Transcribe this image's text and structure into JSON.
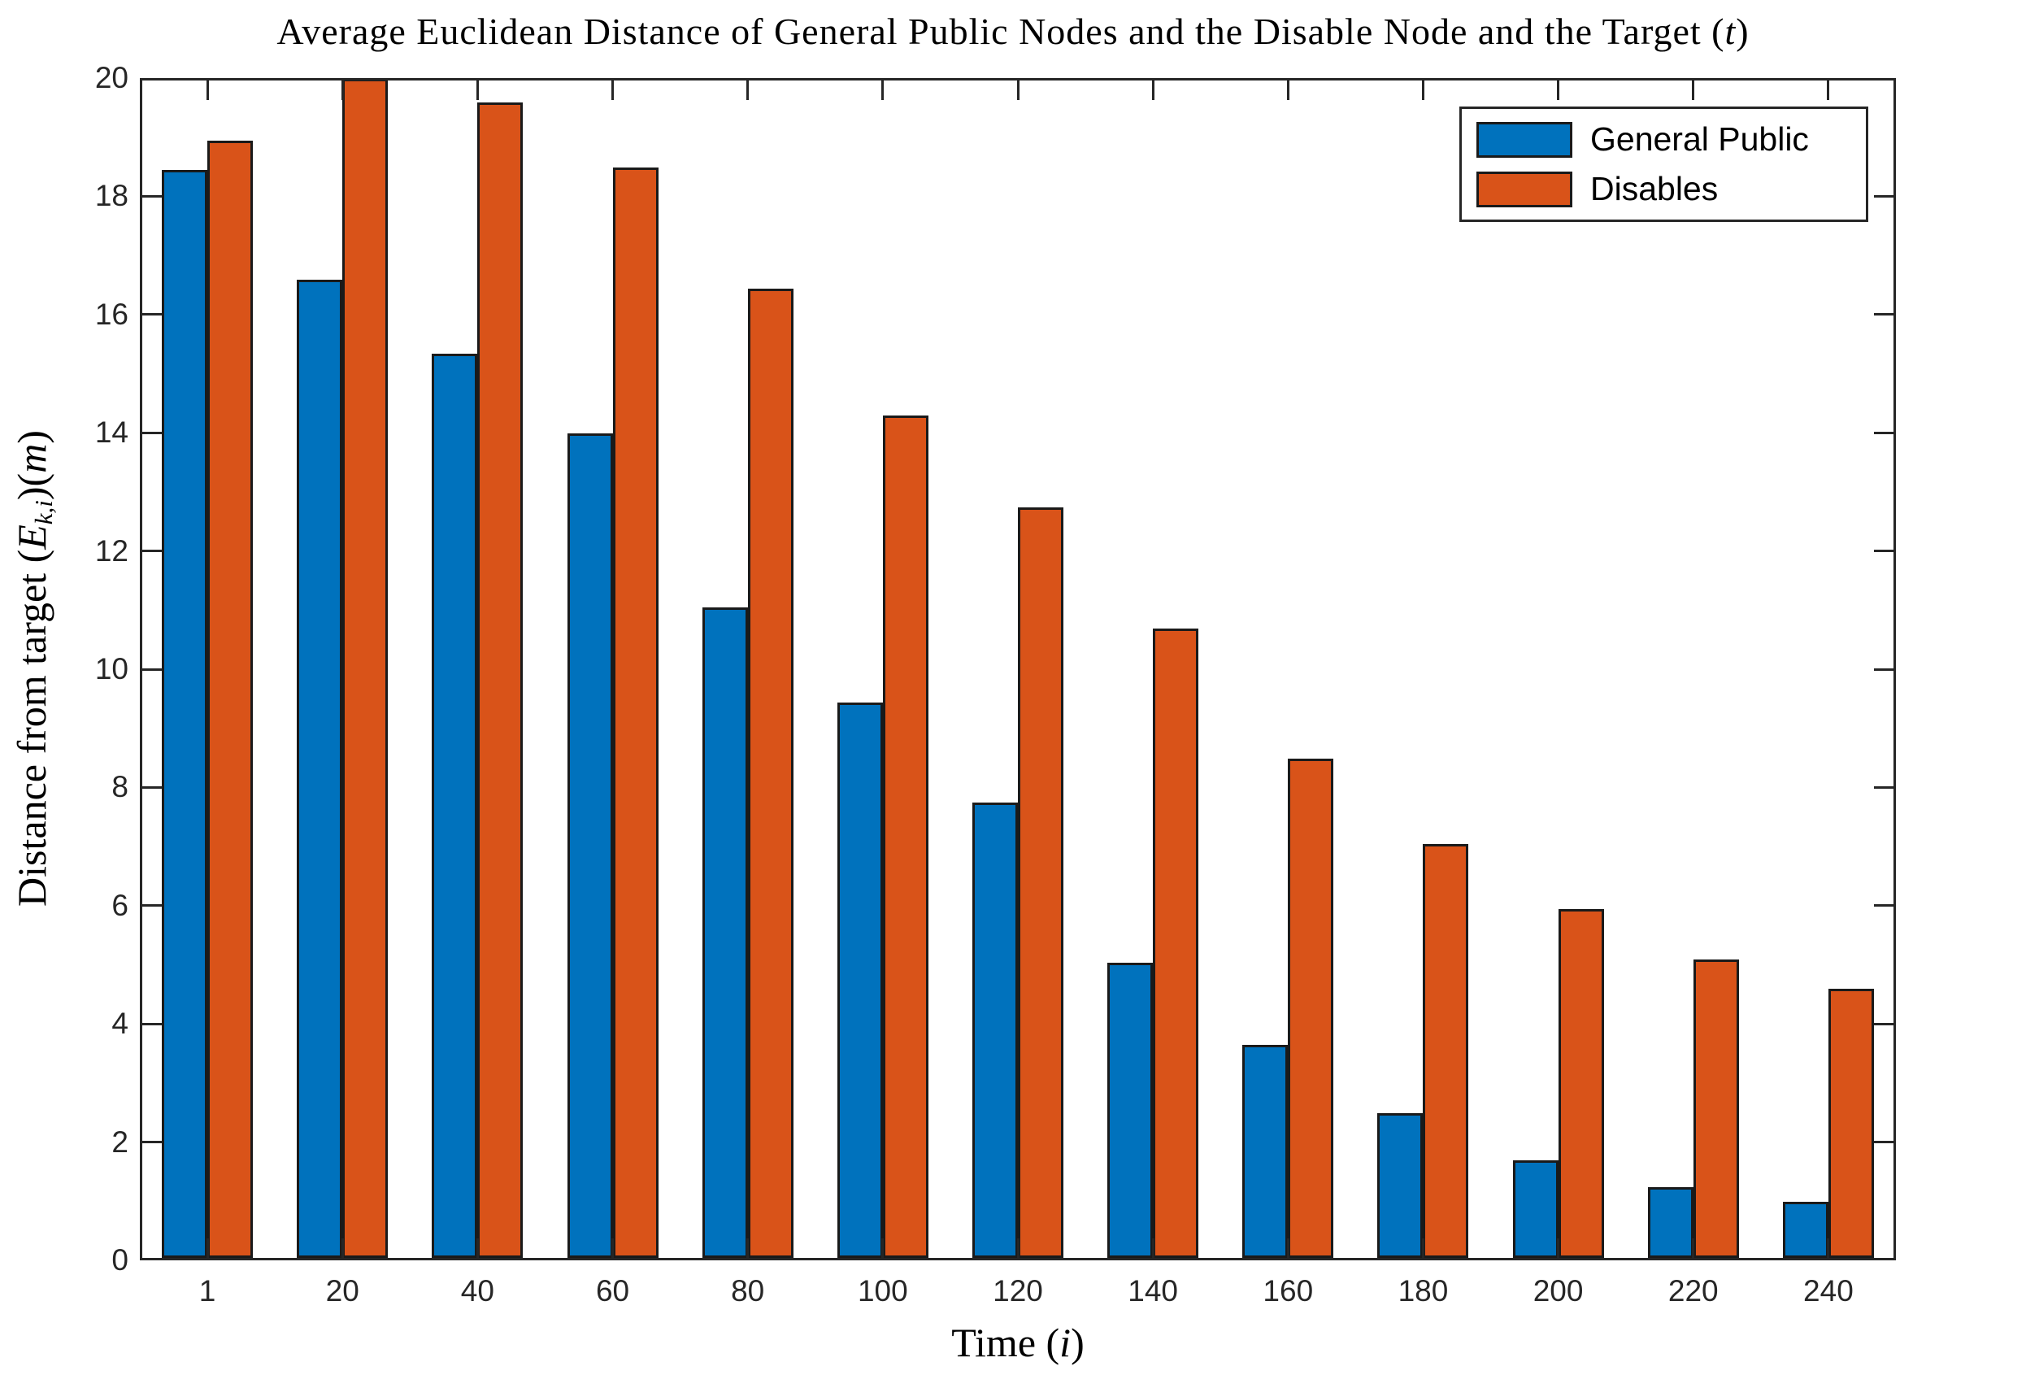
{
  "title": {
    "main": "Average Euclidean Distance of General Public Nodes and the Disable Node and the Target (",
    "var": "t",
    "close": ")"
  },
  "axes": {
    "xlabel": {
      "prefix": "Time (",
      "var": "i",
      "suffix": ")"
    },
    "ylabel": {
      "prefix": "Distance from target (",
      "var": "E",
      "sub": "k,i",
      "mid": ")(",
      "unit": "m",
      "suffix": ")"
    },
    "y_ticks": [
      0,
      2,
      4,
      6,
      8,
      10,
      12,
      14,
      16,
      18,
      20
    ]
  },
  "legend": {
    "items": [
      {
        "label": "General Public",
        "color": "#0072BD"
      },
      {
        "label": "Disables",
        "color": "#D95319"
      }
    ]
  },
  "colors": {
    "blue": "#0072BD",
    "orange": "#D95319",
    "axis": "#262626",
    "bar_edge": "#1a1a1a",
    "background": "#ffffff"
  },
  "chart_data": {
    "type": "bar",
    "title": "Average Euclidean Distance of General Public Nodes and the Disable Node and the Target (t)",
    "xlabel": "Time (i)",
    "ylabel": "Distance from target (E_{k,i})(m)",
    "categories": [
      "1",
      "20",
      "40",
      "60",
      "80",
      "100",
      "120",
      "140",
      "160",
      "180",
      "200",
      "220",
      "240"
    ],
    "series": [
      {
        "name": "General Public",
        "color": "#0072BD",
        "values": [
          18.4,
          16.55,
          15.3,
          13.95,
          11.0,
          9.4,
          7.7,
          5.0,
          3.6,
          2.45,
          1.65,
          1.2,
          0.95
        ]
      },
      {
        "name": "Disables",
        "color": "#D95319",
        "values": [
          18.9,
          19.95,
          19.55,
          18.45,
          16.4,
          14.25,
          12.7,
          10.65,
          8.45,
          7.0,
          5.9,
          5.05,
          4.55
        ]
      }
    ],
    "ylim": [
      0,
      20
    ],
    "grid": false,
    "legend_position": "top-right",
    "bar_group_gap_ratio": 0.32
  }
}
